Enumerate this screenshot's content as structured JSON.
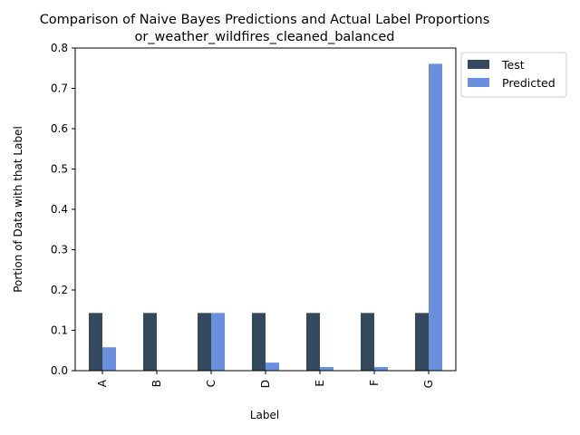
{
  "chart_data": {
    "type": "bar",
    "title": "Comparison of Naive Bayes Predictions and Actual Label Proportions",
    "subtitle": "or_weather_wildfires_cleaned_balanced",
    "xlabel": "Label",
    "ylabel": "Portion of Data with that Label",
    "categories": [
      "A",
      "B",
      "C",
      "D",
      "E",
      "F",
      "G"
    ],
    "ylim": [
      0,
      0.8
    ],
    "yticks": [
      "0.0",
      "0.1",
      "0.2",
      "0.3",
      "0.4",
      "0.5",
      "0.6",
      "0.7",
      "0.8"
    ],
    "grid": false,
    "legend_position": "outside-top-right",
    "series": [
      {
        "name": "Test",
        "color": "#34495e",
        "values": [
          0.143,
          0.143,
          0.143,
          0.143,
          0.143,
          0.143,
          0.143
        ]
      },
      {
        "name": "Predicted",
        "color": "#6a8fdc",
        "values": [
          0.058,
          0.0,
          0.143,
          0.02,
          0.009,
          0.009,
          0.761
        ]
      }
    ]
  }
}
